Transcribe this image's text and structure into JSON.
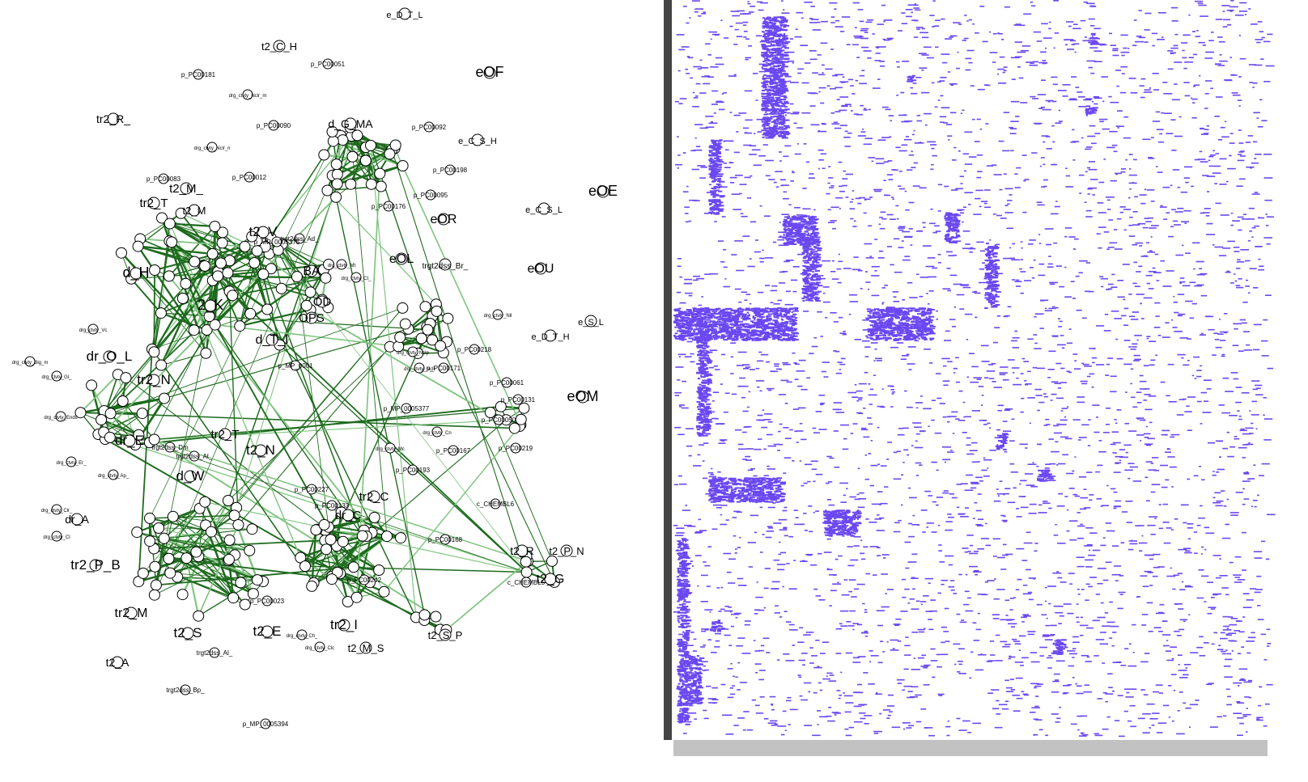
{
  "network": {
    "edge_color": "#1e6b1e",
    "edge_light_color": "#7fc47f",
    "node_stroke": "#000000",
    "large_labels": [
      "e_D_T_L",
      "t2_C_H",
      "eOF",
      "tr2_R_",
      "e_C_S_H",
      "d_G_MA",
      "t2_M_",
      "eOE",
      "tr2_T",
      "t2_M",
      "e_C_S_L",
      "eOR",
      "t2_V",
      "eOL",
      "eOU",
      "BA",
      "d_H",
      "trgt2dss_Br_",
      "d_T_I",
      "2_K",
      "e_S_L",
      "OD",
      "OPS",
      "e_D_T_H",
      "tr2_N",
      "dr_O_L",
      "eOM",
      "dr_E",
      "tr2_T",
      "t2_N",
      "d_W",
      "tr2_C",
      "dr_C",
      "dr_A",
      "tr2_P_B",
      "t2_G",
      "t2_R",
      "t2_P_N",
      "tr2_M",
      "t2_S",
      "t2_E",
      "tr2_I",
      "t2_M_S",
      "t2_A",
      "t2_S_P"
    ],
    "small_labels": [
      "p_PC00181",
      "p_PC00051",
      "p_PC00090",
      "p_PC00092",
      "p_PC00198",
      "p_PC00095",
      "p_PC00176",
      "p_PC00083",
      "p_PC00012",
      "p_MP_0005375",
      "p_MP_0001",
      "p_PC00218",
      "p_PC00171",
      "p_PC00061",
      "p_PC00131",
      "p_PC00050",
      "p_PC00219",
      "p_PC00167",
      "p_PC00193",
      "p_PC00227",
      "p_PC00133",
      "p_PC00168",
      "p_PC00023",
      "p_PC00242",
      "p_MP_0005377",
      "p_MP_0005394",
      "c_CHEMBL6",
      "c_CHEMBL5",
      "trgt2dss_Ad_",
      "trgt2dss_At_",
      "trgt2dss_Dm",
      "trgt2dss_Al_",
      "trgt2dss_Bp_",
      "drg_ctvty_Nclr_m",
      "drg_ctvty_Nclr_n",
      "drg_ctvty_Nll",
      "drg_ctvty_Mt",
      "drg_ctvty_Ct_",
      "drg_ctvty_Big_m",
      "drg_ctvty_Gl_",
      "drg_ctvty_Ends",
      "drg_ctvty_Er_",
      "drg_ctvty_Ap_",
      "drg_ctvty_Clr_",
      "drg_ctvty_Cl",
      "drg_ctvty_Cn",
      "drg_ctvty_Mc",
      "drg_ctvty_Nclp",
      "drg_ctvty_Ncll",
      "drg_ctvty_Vc",
      "drg_ctvty_Ch_",
      "drg_ctvty_Clc"
    ]
  },
  "heatmap": {
    "color": "#6b48f0",
    "background": "#ffffff"
  }
}
